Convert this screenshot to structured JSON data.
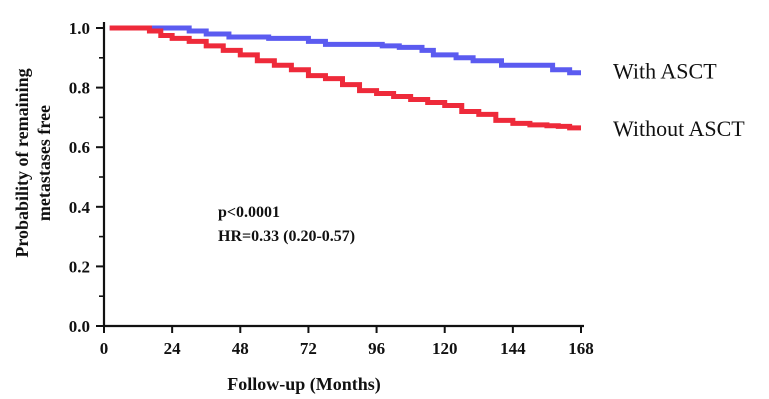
{
  "chart_data": {
    "type": "line",
    "title": "",
    "xlabel": "Follow-up (Months)",
    "ylabel_lines": [
      "Probability of remaining",
      "metastases free"
    ],
    "xlim": [
      0,
      168
    ],
    "ylim": [
      0,
      1.0
    ],
    "xticks": [
      "0",
      "24",
      "48",
      "72",
      "96",
      "120",
      "144",
      "168"
    ],
    "yticks": [
      "0.0",
      "0.2",
      "0.4",
      "0.6",
      "0.8",
      "1.0"
    ],
    "grid": false,
    "legend_placement": "right-of-plot",
    "annotations": [
      "p<0.0001",
      "HR=0.33 (0.20-0.57)"
    ],
    "series": [
      {
        "name": "With ASCT",
        "color": "#5b5bf0",
        "x": [
          2,
          18,
          30,
          36,
          44,
          52,
          58,
          72,
          78,
          88,
          98,
          104,
          112,
          116,
          124,
          130,
          140,
          158,
          164,
          168
        ],
        "y": [
          1.0,
          1.0,
          0.99,
          0.98,
          0.97,
          0.97,
          0.965,
          0.955,
          0.945,
          0.945,
          0.94,
          0.935,
          0.925,
          0.91,
          0.9,
          0.89,
          0.875,
          0.86,
          0.85,
          0.85
        ]
      },
      {
        "name": "Without ASCT",
        "color": "#ee2a3a",
        "x": [
          2,
          12,
          16,
          20,
          24,
          30,
          36,
          42,
          48,
          54,
          60,
          66,
          72,
          78,
          84,
          90,
          96,
          102,
          108,
          114,
          120,
          126,
          132,
          138,
          144,
          150,
          156,
          160,
          164,
          168
        ],
        "y": [
          1.0,
          1.0,
          0.99,
          0.975,
          0.965,
          0.955,
          0.94,
          0.925,
          0.91,
          0.89,
          0.875,
          0.86,
          0.84,
          0.83,
          0.81,
          0.79,
          0.78,
          0.77,
          0.76,
          0.75,
          0.74,
          0.72,
          0.71,
          0.69,
          0.68,
          0.675,
          0.672,
          0.67,
          0.665,
          0.665
        ]
      }
    ]
  }
}
